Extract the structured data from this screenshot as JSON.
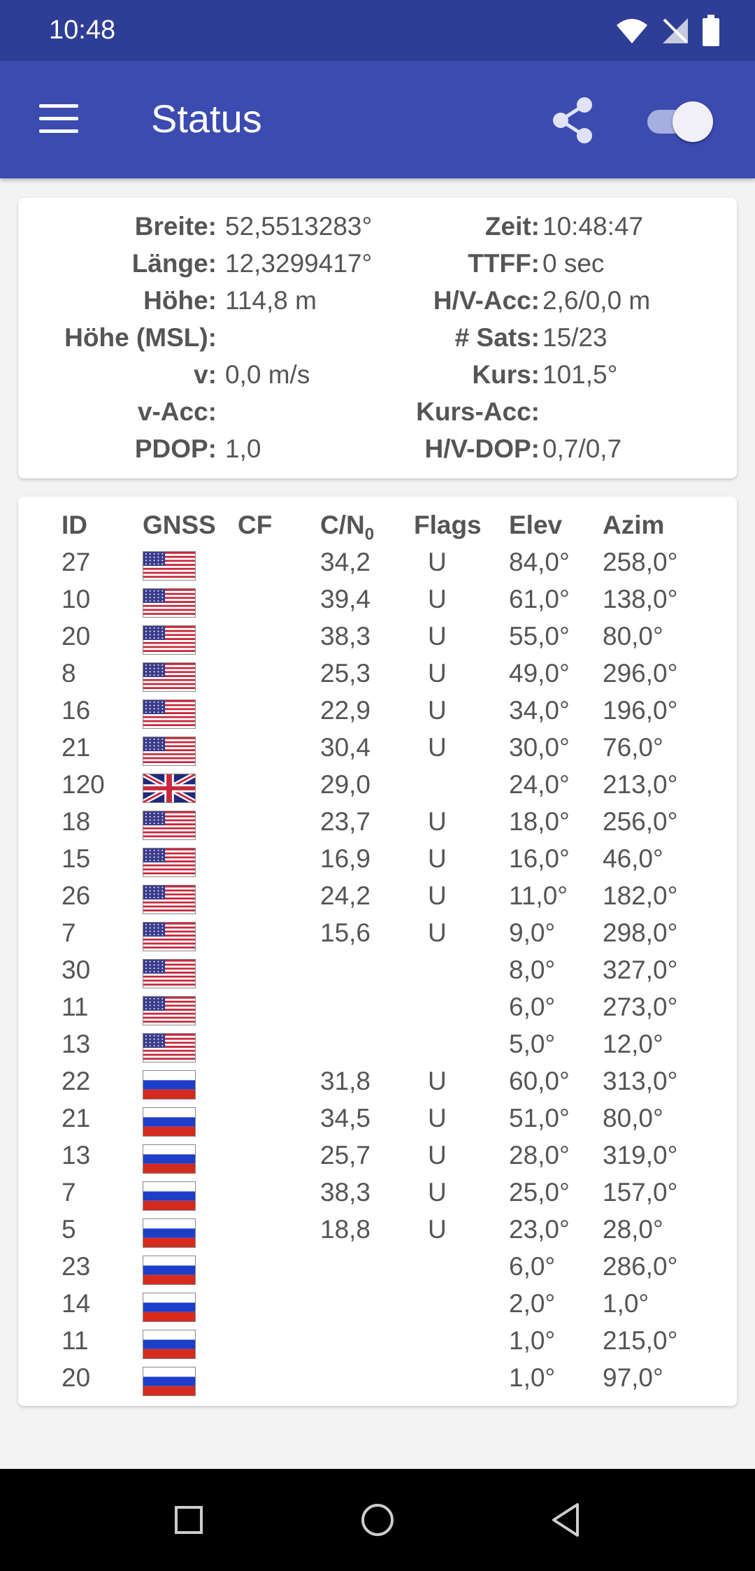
{
  "status_bar": {
    "time": "10:48"
  },
  "app_bar": {
    "title": "Status"
  },
  "position": {
    "left": [
      {
        "label": "Breite:",
        "value": "52,5513283°"
      },
      {
        "label": "Länge:",
        "value": "12,3299417°"
      },
      {
        "label": "Höhe:",
        "value": "114,8 m"
      },
      {
        "label": "Höhe (MSL):",
        "value": ""
      },
      {
        "label": "v:",
        "value": "0,0 m/s"
      },
      {
        "label": "v-Acc:",
        "value": ""
      },
      {
        "label": "PDOP:",
        "value": "1,0"
      }
    ],
    "right": [
      {
        "label": "Zeit:",
        "value": "10:48:47"
      },
      {
        "label": "TTFF:",
        "value": "0 sec"
      },
      {
        "label": "H/V-Acc:",
        "value": "2,6/0,0 m"
      },
      {
        "label": "# Sats:",
        "value": "15/23"
      },
      {
        "label": "Kurs:",
        "value": "101,5°"
      },
      {
        "label": "Kurs-Acc:",
        "value": ""
      },
      {
        "label": "H/V-DOP:",
        "value": "0,7/0,7"
      }
    ]
  },
  "satellites": {
    "headers": {
      "id": "ID",
      "gnss": "GNSS",
      "cf": "CF",
      "cn": "C/N",
      "cn_sub": "0",
      "flags": "Flags",
      "elev": "Elev",
      "azim": "Azim"
    },
    "rows": [
      {
        "id": "27",
        "gnss": "us-flag-icon",
        "cn": "34,2",
        "flags": "U",
        "elev": "84,0°",
        "azim": "258,0°"
      },
      {
        "id": "10",
        "gnss": "us-flag-icon",
        "cn": "39,4",
        "flags": "U",
        "elev": "61,0°",
        "azim": "138,0°"
      },
      {
        "id": "20",
        "gnss": "us-flag-icon",
        "cn": "38,3",
        "flags": "U",
        "elev": "55,0°",
        "azim": "80,0°"
      },
      {
        "id": "8",
        "gnss": "us-flag-icon",
        "cn": "25,3",
        "flags": "U",
        "elev": "49,0°",
        "azim": "296,0°"
      },
      {
        "id": "16",
        "gnss": "us-flag-icon",
        "cn": "22,9",
        "flags": "U",
        "elev": "34,0°",
        "azim": "196,0°"
      },
      {
        "id": "21",
        "gnss": "us-flag-icon",
        "cn": "30,4",
        "flags": "U",
        "elev": "30,0°",
        "azim": "76,0°"
      },
      {
        "id": "120",
        "gnss": "uk-flag-icon",
        "cn": "29,0",
        "flags": "",
        "elev": "24,0°",
        "azim": "213,0°"
      },
      {
        "id": "18",
        "gnss": "us-flag-icon",
        "cn": "23,7",
        "flags": "U",
        "elev": "18,0°",
        "azim": "256,0°"
      },
      {
        "id": "15",
        "gnss": "us-flag-icon",
        "cn": "16,9",
        "flags": "U",
        "elev": "16,0°",
        "azim": "46,0°"
      },
      {
        "id": "26",
        "gnss": "us-flag-icon",
        "cn": "24,2",
        "flags": "U",
        "elev": "11,0°",
        "azim": "182,0°"
      },
      {
        "id": "7",
        "gnss": "us-flag-icon",
        "cn": "15,6",
        "flags": "U",
        "elev": "9,0°",
        "azim": "298,0°"
      },
      {
        "id": "30",
        "gnss": "us-flag-icon",
        "cn": "",
        "flags": "",
        "elev": "8,0°",
        "azim": "327,0°"
      },
      {
        "id": "11",
        "gnss": "us-flag-icon",
        "cn": "",
        "flags": "",
        "elev": "6,0°",
        "azim": "273,0°"
      },
      {
        "id": "13",
        "gnss": "us-flag-icon",
        "cn": "",
        "flags": "",
        "elev": "5,0°",
        "azim": "12,0°"
      },
      {
        "id": "22",
        "gnss": "ru-flag-icon",
        "cn": "31,8",
        "flags": "U",
        "elev": "60,0°",
        "azim": "313,0°"
      },
      {
        "id": "21",
        "gnss": "ru-flag-icon",
        "cn": "34,5",
        "flags": "U",
        "elev": "51,0°",
        "azim": "80,0°"
      },
      {
        "id": "13",
        "gnss": "ru-flag-icon",
        "cn": "25,7",
        "flags": "U",
        "elev": "28,0°",
        "azim": "319,0°"
      },
      {
        "id": "7",
        "gnss": "ru-flag-icon",
        "cn": "38,3",
        "flags": "U",
        "elev": "25,0°",
        "azim": "157,0°"
      },
      {
        "id": "5",
        "gnss": "ru-flag-icon",
        "cn": "18,8",
        "flags": "U",
        "elev": "23,0°",
        "azim": "28,0°"
      },
      {
        "id": "23",
        "gnss": "ru-flag-icon",
        "cn": "",
        "flags": "",
        "elev": "6,0°",
        "azim": "286,0°"
      },
      {
        "id": "14",
        "gnss": "ru-flag-icon",
        "cn": "",
        "flags": "",
        "elev": "2,0°",
        "azim": "1,0°"
      },
      {
        "id": "11",
        "gnss": "ru-flag-icon",
        "cn": "",
        "flags": "",
        "elev": "1,0°",
        "azim": "215,0°"
      },
      {
        "id": "20",
        "gnss": "ru-flag-icon",
        "cn": "",
        "flags": "",
        "elev": "1,0°",
        "azim": "97,0°"
      }
    ]
  },
  "icons": {
    "menu": "menu-icon",
    "share": "share-icon",
    "toggle": "toggle-switch",
    "wifi": "wifi-icon",
    "signal": "no-signal-icon",
    "battery": "battery-icon",
    "nav_recents": "square-icon",
    "nav_home": "circle-icon",
    "nav_back": "triangle-back-icon"
  },
  "colors": {
    "status_bar": "#2e3d95",
    "app_bar": "#3b4bb0",
    "toggle_track": "#a6b0e0"
  }
}
